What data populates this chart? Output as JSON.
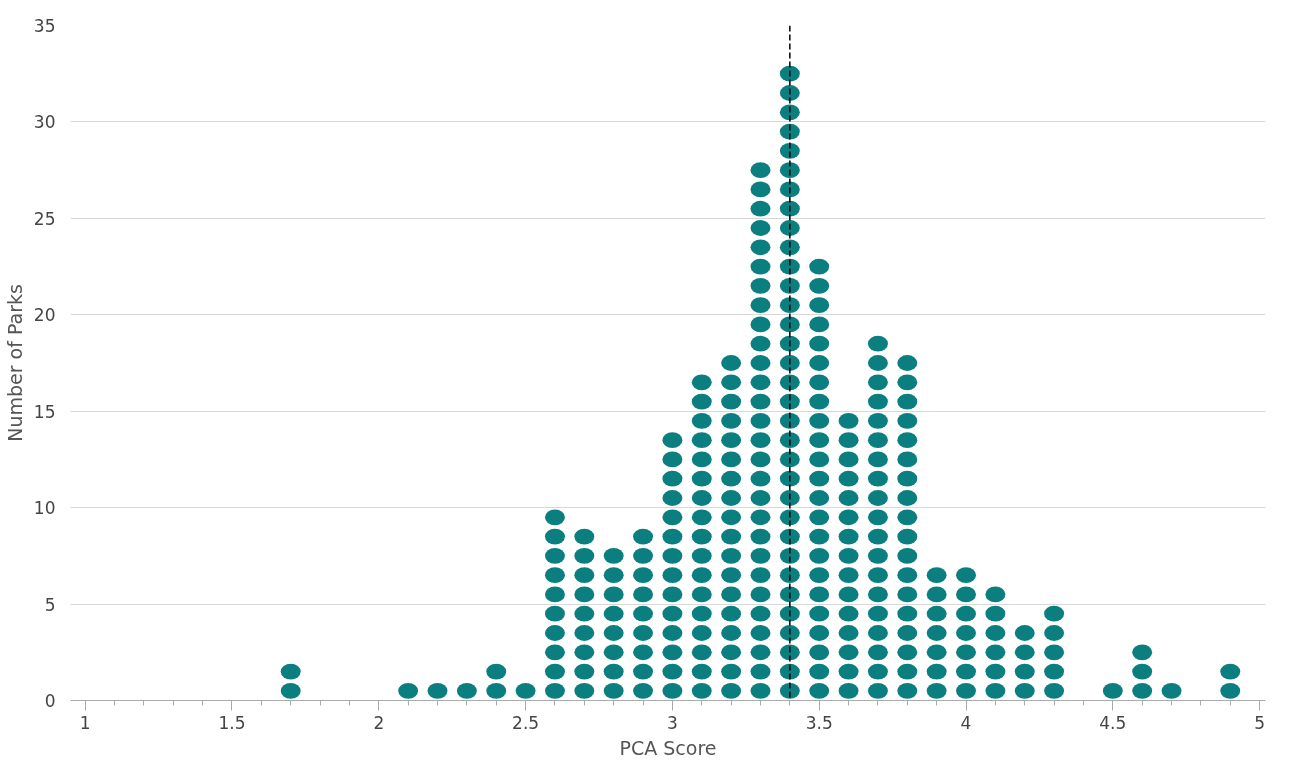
{
  "chart_data": {
    "type": "scatter",
    "marker": "circle",
    "xlabel": "PCA Score",
    "ylabel": "Number of Parks",
    "x": [
      1.7,
      1.7,
      2.1,
      2.2,
      2.3,
      2.4,
      2.4,
      2.5,
      2.6,
      2.6,
      2.6,
      2.6,
      2.6,
      2.6,
      2.6,
      2.6,
      2.6,
      2.6,
      2.7,
      2.7,
      2.7,
      2.7,
      2.7,
      2.7,
      2.7,
      2.7,
      2.7,
      2.8,
      2.8,
      2.8,
      2.8,
      2.8,
      2.8,
      2.8,
      2.8,
      2.9,
      2.9,
      2.9,
      2.9,
      2.9,
      2.9,
      2.9,
      2.9,
      2.9,
      3.0,
      3.0,
      3.0,
      3.0,
      3.0,
      3.0,
      3.0,
      3.0,
      3.0,
      3.0,
      3.0,
      3.0,
      3.0,
      3.0,
      3.1,
      3.1,
      3.1,
      3.1,
      3.1,
      3.1,
      3.1,
      3.1,
      3.1,
      3.1,
      3.1,
      3.1,
      3.1,
      3.1,
      3.1,
      3.1,
      3.1,
      3.2,
      3.2,
      3.2,
      3.2,
      3.2,
      3.2,
      3.2,
      3.2,
      3.2,
      3.2,
      3.2,
      3.2,
      3.2,
      3.2,
      3.2,
      3.2,
      3.2,
      3.2,
      3.3,
      3.3,
      3.3,
      3.3,
      3.3,
      3.3,
      3.3,
      3.3,
      3.3,
      3.3,
      3.3,
      3.3,
      3.3,
      3.3,
      3.3,
      3.3,
      3.3,
      3.3,
      3.3,
      3.3,
      3.3,
      3.3,
      3.3,
      3.3,
      3.3,
      3.3,
      3.3,
      3.3,
      3.4,
      3.4,
      3.4,
      3.4,
      3.4,
      3.4,
      3.4,
      3.4,
      3.4,
      3.4,
      3.4,
      3.4,
      3.4,
      3.4,
      3.4,
      3.4,
      3.4,
      3.4,
      3.4,
      3.4,
      3.4,
      3.4,
      3.4,
      3.4,
      3.4,
      3.4,
      3.4,
      3.4,
      3.4,
      3.4,
      3.4,
      3.4,
      3.4,
      3.5,
      3.5,
      3.5,
      3.5,
      3.5,
      3.5,
      3.5,
      3.5,
      3.5,
      3.5,
      3.5,
      3.5,
      3.5,
      3.5,
      3.5,
      3.5,
      3.5,
      3.5,
      3.5,
      3.5,
      3.5,
      3.5,
      3.5,
      3.6,
      3.6,
      3.6,
      3.6,
      3.6,
      3.6,
      3.6,
      3.6,
      3.6,
      3.6,
      3.6,
      3.6,
      3.6,
      3.6,
      3.6,
      3.7,
      3.7,
      3.7,
      3.7,
      3.7,
      3.7,
      3.7,
      3.7,
      3.7,
      3.7,
      3.7,
      3.7,
      3.7,
      3.7,
      3.7,
      3.7,
      3.7,
      3.7,
      3.7,
      3.8,
      3.8,
      3.8,
      3.8,
      3.8,
      3.8,
      3.8,
      3.8,
      3.8,
      3.8,
      3.8,
      3.8,
      3.8,
      3.8,
      3.8,
      3.8,
      3.8,
      3.8,
      3.9,
      3.9,
      3.9,
      3.9,
      3.9,
      3.9,
      3.9,
      4.0,
      4.0,
      4.0,
      4.0,
      4.0,
      4.0,
      4.0,
      4.1,
      4.1,
      4.1,
      4.1,
      4.1,
      4.1,
      4.2,
      4.2,
      4.2,
      4.2,
      4.3,
      4.3,
      4.3,
      4.3,
      4.3,
      4.5,
      4.6,
      4.6,
      4.6,
      4.7,
      4.9,
      4.9
    ],
    "values": [
      0.5,
      1.5,
      0.5,
      0.5,
      0.5,
      0.5,
      1.5,
      0.5,
      0.5,
      1.5,
      2.5,
      3.5,
      4.5,
      5.5,
      6.5,
      7.5,
      8.5,
      9.5,
      0.5,
      1.5,
      2.5,
      3.5,
      4.5,
      5.5,
      6.5,
      7.5,
      8.5,
      0.5,
      1.5,
      2.5,
      3.5,
      4.5,
      5.5,
      6.5,
      7.5,
      0.5,
      1.5,
      2.5,
      3.5,
      4.5,
      5.5,
      6.5,
      7.5,
      8.5,
      0.5,
      1.5,
      2.5,
      3.5,
      4.5,
      5.5,
      6.5,
      7.5,
      8.5,
      9.5,
      10.5,
      11.5,
      12.5,
      13.5,
      0.5,
      1.5,
      2.5,
      3.5,
      4.5,
      5.5,
      6.5,
      7.5,
      8.5,
      9.5,
      10.5,
      11.5,
      12.5,
      13.5,
      14.5,
      15.5,
      16.5,
      0.5,
      1.5,
      2.5,
      3.5,
      4.5,
      5.5,
      6.5,
      7.5,
      8.5,
      9.5,
      10.5,
      11.5,
      12.5,
      13.5,
      14.5,
      15.5,
      16.5,
      17.5,
      0.5,
      1.5,
      2.5,
      3.5,
      4.5,
      5.5,
      6.5,
      7.5,
      8.5,
      9.5,
      10.5,
      11.5,
      12.5,
      13.5,
      14.5,
      15.5,
      16.5,
      17.5,
      18.5,
      19.5,
      20.5,
      21.5,
      22.5,
      23.5,
      24.5,
      25.5,
      26.5,
      27.5,
      0.5,
      1.5,
      2.5,
      3.5,
      4.5,
      5.5,
      6.5,
      7.5,
      8.5,
      9.5,
      10.5,
      11.5,
      12.5,
      13.5,
      14.5,
      15.5,
      16.5,
      17.5,
      18.5,
      19.5,
      20.5,
      21.5,
      22.5,
      23.5,
      24.5,
      25.5,
      26.5,
      27.5,
      28.5,
      29.5,
      30.5,
      31.5,
      32.5,
      0.5,
      1.5,
      2.5,
      3.5,
      4.5,
      5.5,
      6.5,
      7.5,
      8.5,
      9.5,
      10.5,
      11.5,
      12.5,
      13.5,
      14.5,
      15.5,
      16.5,
      17.5,
      18.5,
      19.5,
      20.5,
      21.5,
      22.5,
      0.5,
      1.5,
      2.5,
      3.5,
      4.5,
      5.5,
      6.5,
      7.5,
      8.5,
      9.5,
      10.5,
      11.5,
      12.5,
      13.5,
      14.5,
      0.5,
      1.5,
      2.5,
      3.5,
      4.5,
      5.5,
      6.5,
      7.5,
      8.5,
      9.5,
      10.5,
      11.5,
      12.5,
      13.5,
      14.5,
      15.5,
      16.5,
      17.5,
      18.5,
      0.5,
      1.5,
      2.5,
      3.5,
      4.5,
      5.5,
      6.5,
      7.5,
      8.5,
      9.5,
      10.5,
      11.5,
      12.5,
      13.5,
      14.5,
      15.5,
      16.5,
      17.5,
      0.5,
      1.5,
      2.5,
      3.5,
      4.5,
      5.5,
      6.5,
      0.5,
      1.5,
      2.5,
      3.5,
      4.5,
      5.5,
      6.5,
      0.5,
      1.5,
      2.5,
      3.5,
      4.5,
      5.5,
      0.5,
      1.5,
      2.5,
      3.5,
      0.5,
      1.5,
      2.5,
      3.5,
      4.5,
      0.5,
      0.5,
      1.5,
      2.5,
      0.5,
      0.5,
      1.5
    ],
    "color": "#0b7f7f",
    "xlim": [
      0.95,
      5.02
    ],
    "xticks": [
      1,
      {
        "value": 1.1,
        "label": null
      },
      {
        "value": 1.2,
        "label": null
      },
      {
        "value": 1.3,
        "label": null
      },
      {
        "value": 1.4,
        "label": null
      },
      1.5,
      {
        "value": 1.6,
        "label": null
      },
      {
        "value": 1.7,
        "label": null
      },
      {
        "value": 1.8,
        "label": null
      },
      {
        "value": 1.9,
        "label": null
      },
      2,
      {
        "value": 2.1,
        "label": null
      },
      {
        "value": 2.2,
        "label": null
      },
      {
        "value": 2.3,
        "label": null
      },
      {
        "value": 2.4,
        "label": null
      },
      2.5,
      {
        "value": 2.6,
        "label": null
      },
      {
        "value": 2.7,
        "label": null
      },
      {
        "value": 2.8,
        "label": null
      },
      {
        "value": 2.9,
        "label": null
      },
      3,
      {
        "value": 3.1,
        "label": null
      },
      {
        "value": 3.2,
        "label": null
      },
      {
        "value": 3.3,
        "label": null
      },
      {
        "value": 3.4,
        "label": null
      },
      3.5,
      {
        "value": 3.6,
        "label": null
      },
      {
        "value": 3.7,
        "label": null
      },
      {
        "value": 3.8,
        "label": null
      },
      {
        "value": 3.9,
        "label": null
      },
      4,
      {
        "value": 4.1,
        "label": null
      },
      {
        "value": 4.2,
        "label": null
      },
      {
        "value": 4.3,
        "label": null
      },
      {
        "value": 4.4,
        "label": null
      },
      4.5,
      {
        "value": 4.6,
        "label": null
      },
      {
        "value": 4.7,
        "label": null
      },
      {
        "value": 4.8,
        "label": null
      },
      {
        "value": 4.9,
        "label": null
      },
      5
    ],
    "ylim": [
      0,
      35
    ],
    "yticks": [
      0,
      5,
      10,
      15,
      20,
      25,
      30,
      35
    ],
    "grid": "y",
    "ref_lines": [
      {
        "axis": "x",
        "value": 3.4,
        "color": "#000000",
        "line_style": "dashed"
      }
    ]
  }
}
